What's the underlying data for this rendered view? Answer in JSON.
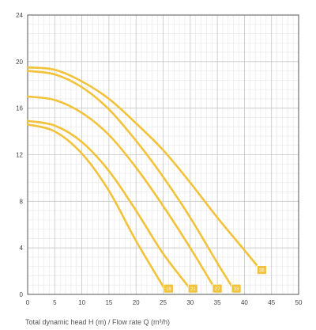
{
  "chart_data": {
    "type": "line",
    "title": "",
    "xlabel": "Total dynamic head H (m) / Flow rate Q (m³/h)",
    "ylabel": "",
    "xlim": [
      0,
      50
    ],
    "ylim": [
      0,
      24
    ],
    "x_ticks": [
      0,
      5,
      10,
      15,
      20,
      25,
      30,
      35,
      40,
      45,
      50
    ],
    "y_ticks": [
      0,
      4,
      8,
      12,
      16,
      20,
      24
    ],
    "grid": true,
    "line_color": "#F2C23A",
    "series": [
      {
        "name": "18",
        "label_at": [
          26,
          0.5
        ],
        "x": [
          0,
          5,
          10,
          15,
          20,
          25.5
        ],
        "y": [
          14.6,
          14.0,
          12.1,
          8.9,
          4.6,
          0.3
        ]
      },
      {
        "name": "21",
        "label_at": [
          30.5,
          0.5
        ],
        "x": [
          0,
          5,
          10,
          15,
          20,
          25,
          30.3
        ],
        "y": [
          14.9,
          14.5,
          13.1,
          10.6,
          7.2,
          3.5,
          0.3
        ]
      },
      {
        "name": "27",
        "label_at": [
          35,
          0.5
        ],
        "x": [
          0,
          5,
          10,
          15,
          20,
          25,
          30,
          34.8
        ],
        "y": [
          17.0,
          16.7,
          15.6,
          13.7,
          10.9,
          7.6,
          4.0,
          0.3
        ]
      },
      {
        "name": "33",
        "label_at": [
          38.5,
          0.5
        ],
        "x": [
          0,
          5,
          10,
          15,
          20,
          25,
          30,
          35,
          38.2
        ],
        "y": [
          19.2,
          18.9,
          17.8,
          15.9,
          13.2,
          10.1,
          6.6,
          2.7,
          0.3
        ]
      },
      {
        "name": "36",
        "label_at": [
          43.2,
          2.1
        ],
        "x": [
          0,
          5,
          10,
          15,
          20,
          25,
          30,
          35,
          40,
          43
        ],
        "y": [
          19.5,
          19.3,
          18.3,
          16.8,
          14.7,
          12.4,
          9.6,
          6.6,
          3.8,
          2.1
        ]
      }
    ]
  }
}
